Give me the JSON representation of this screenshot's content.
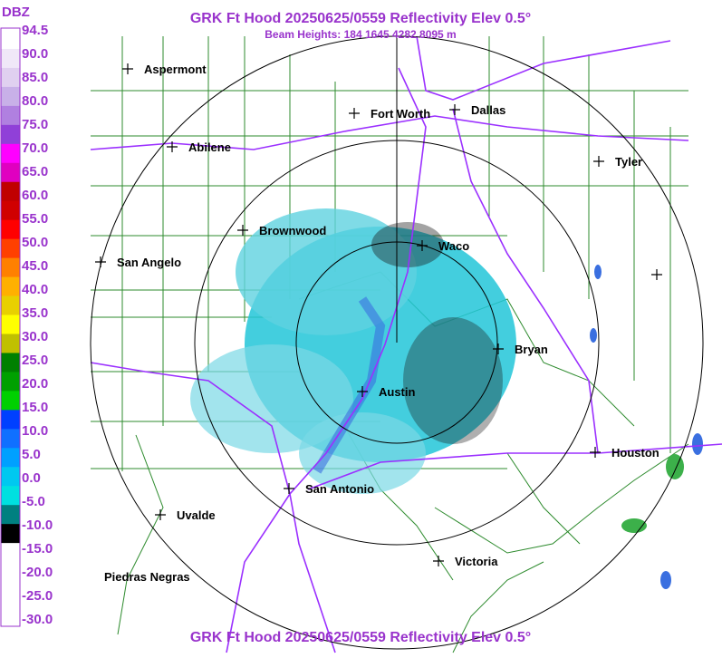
{
  "header": {
    "title": "GRK Ft Hood 20250625/0559 Reflectivity Elev 0.5°",
    "subtitle": "Beam Heights: 184 1645 4282 8095 m",
    "footer": "GRK Ft Hood 20250625/0559 Reflectivity Elev 0.5°"
  },
  "legend": {
    "unit": "DBZ",
    "labels": [
      "94.5",
      "90.0",
      "85.0",
      "80.0",
      "75.0",
      "70.0",
      "65.0",
      "60.0",
      "55.0",
      "50.0",
      "45.0",
      "40.0",
      "35.0",
      "30.0",
      "25.0",
      "20.0",
      "15.0",
      "10.0",
      "5.0",
      "0.0",
      "-5.0",
      "-10.0",
      "-15.0",
      "-20.0",
      "-25.0",
      "-30.0"
    ]
  },
  "cities": [
    "Aspermont",
    "Fort Worth",
    "Dallas",
    "Abilene",
    "Tyler",
    "Brownwood",
    "Waco",
    "San Angelo",
    "Bryan",
    "Austin",
    "Houston",
    "San Antonio",
    "Uvalde",
    "Victoria",
    "Piedras Negras"
  ]
}
